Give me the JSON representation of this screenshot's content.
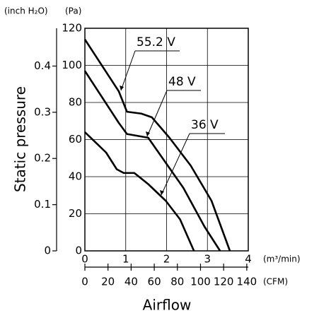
{
  "chart_data": {
    "type": "line",
    "x_label": "Airflow",
    "y_label": "Static pressure",
    "x_unit": "(m³/min)",
    "x2_unit": "(CFM)",
    "y_unit": "(Pa)",
    "y2_unit": "(inch H₂O)",
    "xlim": [
      0,
      4
    ],
    "xticks": [
      0,
      1,
      2,
      3,
      4
    ],
    "x2lim": [
      0,
      141.3
    ],
    "x2ticks": [
      0,
      20,
      40,
      60,
      80,
      100,
      120,
      140
    ],
    "ylim": [
      0,
      120
    ],
    "yticks": [
      0,
      20,
      40,
      60,
      80,
      100,
      120
    ],
    "y2lim": [
      0,
      0.4818
    ],
    "y2ticks": [
      0,
      0.1,
      0.2,
      0.3,
      0.4
    ],
    "grid": true,
    "series": [
      {
        "name": "55.2 V",
        "color": "#000000",
        "x": [
          0,
          0.83,
          1.03,
          1.38,
          1.64,
          2.07,
          2.59,
          3.1,
          3.55
        ],
        "values": [
          114,
          86,
          75,
          74,
          72,
          61,
          46,
          27,
          0
        ]
      },
      {
        "name": "48 V",
        "color": "#000000",
        "x": [
          0,
          0.83,
          1.03,
          1.29,
          1.55,
          1.9,
          2.41,
          2.93,
          3.31
        ],
        "values": [
          97,
          69,
          63,
          62,
          61,
          50,
          34,
          13,
          0
        ]
      },
      {
        "name": "36 V",
        "color": "#000000",
        "x": [
          0,
          0.52,
          0.78,
          0.95,
          1.21,
          1.55,
          1.98,
          2.33,
          2.67
        ],
        "values": [
          64,
          53,
          44,
          42,
          42,
          36,
          27,
          17,
          0
        ]
      }
    ]
  }
}
